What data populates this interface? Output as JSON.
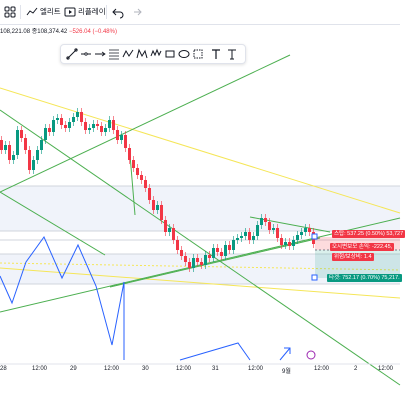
{
  "toolbar": {
    "indicators_label": "엘리트",
    "replay_label": "리플레이"
  },
  "ohlc": {
    "left_text": "108,221.08",
    "close_label": "종",
    "close_value": "108,374.42",
    "change_text": "−526.04 (−0.48%)"
  },
  "drawing_tools": [
    "trend-line",
    "horizontal-line",
    "ray",
    "fib-retracement",
    "pattern",
    "xabcd-pattern",
    "elliott-wave",
    "rectangle",
    "ellipse",
    "brush",
    "text",
    "note"
  ],
  "position": {
    "stop_label": "스탑: 537.25 (0.50%) 53,727",
    "pnl_label": "오시변보모 손익: -222.45,",
    "risk_label": "위험/보상비: 1.4",
    "target_label": "타겟: 752.17 (0.70%) 75,217."
  },
  "x_axis": {
    "labels": [
      "28",
      "12:00",
      "29",
      "12:00",
      "30",
      "12:00",
      "31",
      "12:00",
      "9월",
      "12:00",
      "2",
      "12:00"
    ]
  },
  "colors": {
    "up": "#089981",
    "down": "#f23645",
    "trend_green": "#4caf50",
    "trend_blue": "#2962ff",
    "yellow_line": "#f5e658",
    "position_stop": "#f23645",
    "position_target": "#089981"
  }
}
